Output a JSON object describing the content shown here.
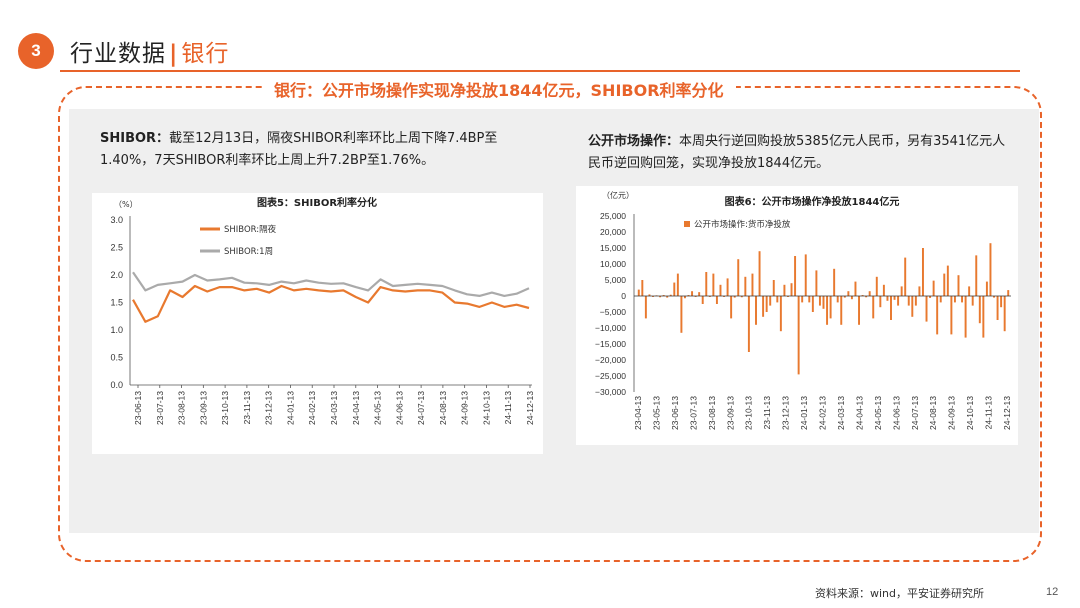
{
  "header": {
    "section_number": "3",
    "section_title": "行业数据",
    "separator": "|",
    "section_subtitle": "银行"
  },
  "headline": "银行：公开市场操作实现净投放1844亿元，SHIBOR利率分化",
  "left_text": {
    "bold": "SHIBOR：",
    "body": "截至12月13日，隔夜SHIBOR利率环比上周下降7.4BP至1.40%，7天SHIBOR利率环比上周上升7.2BP至1.76%。"
  },
  "right_text": {
    "bold": "公开市场操作：",
    "body": "本周央行逆回购投放5385亿元人民币，另有3541亿元人民币逆回购回笼，实现净投放1844亿元。"
  },
  "footer": {
    "source": "资料来源：wind，平安证券研究所",
    "page": "12"
  },
  "colors": {
    "accent": "#e8632a",
    "series_orange": "#e8792f",
    "series_gray": "#aaaaaa"
  },
  "chart_data": [
    {
      "type": "line",
      "title": "图表5：SHIBOR利率分化",
      "ylabel": "（%）",
      "ylim": [
        0,
        3
      ],
      "y_ticks": [
        "0.0",
        "0.5",
        "1.0",
        "1.5",
        "2.0",
        "2.5",
        "3.0"
      ],
      "x_tick_labels": [
        "23-06-13",
        "23-07-13",
        "23-08-13",
        "23-09-13",
        "23-10-13",
        "23-11-13",
        "23-12-13",
        "24-01-13",
        "24-02-13",
        "24-03-13",
        "24-04-13",
        "24-05-13",
        "24-06-13",
        "24-07-13",
        "24-08-13",
        "24-09-13",
        "24-10-13",
        "24-11-13",
        "24-12-13"
      ],
      "legend_placement": "top-left",
      "series": [
        {
          "name": "SHIBOR:隔夜",
          "color": "#e8792f",
          "values": [
            1.55,
            1.15,
            1.25,
            1.72,
            1.6,
            1.8,
            1.7,
            1.78,
            1.78,
            1.72,
            1.75,
            1.68,
            1.8,
            1.72,
            1.75,
            1.72,
            1.7,
            1.72,
            1.6,
            1.5,
            1.78,
            1.72,
            1.7,
            1.72,
            1.72,
            1.68,
            1.5,
            1.48,
            1.42,
            1.5,
            1.42,
            1.46,
            1.4
          ]
        },
        {
          "name": "SHIBOR:1周",
          "color": "#aaaaaa",
          "values": [
            2.05,
            1.72,
            1.82,
            1.85,
            1.88,
            2.0,
            1.9,
            1.92,
            1.95,
            1.86,
            1.85,
            1.82,
            1.88,
            1.85,
            1.9,
            1.86,
            1.84,
            1.85,
            1.78,
            1.72,
            1.92,
            1.8,
            1.82,
            1.84,
            1.82,
            1.8,
            1.72,
            1.65,
            1.62,
            1.68,
            1.62,
            1.66,
            1.76
          ]
        }
      ]
    },
    {
      "type": "bar",
      "title": "图表6：公开市场操作净投放1844亿元",
      "ylabel": "（亿元）",
      "ylim": [
        -30000,
        25000
      ],
      "y_ticks": [
        "25,000",
        "20,000",
        "15,000",
        "10,000",
        "5,000",
        "0",
        "−5,000",
        "−10,000",
        "−15,000",
        "−20,000",
        "−25,000",
        "−30,000"
      ],
      "x_tick_labels": [
        "23-04-13",
        "23-05-13",
        "23-06-13",
        "23-07-13",
        "23-08-13",
        "23-09-13",
        "23-10-13",
        "23-11-13",
        "23-12-13",
        "24-01-13",
        "24-02-13",
        "24-03-13",
        "24-04-13",
        "24-05-13",
        "24-06-13",
        "24-07-13",
        "24-08-13",
        "24-09-13",
        "24-10-13",
        "24-11-13",
        "24-12-13"
      ],
      "legend_placement": "top-left",
      "series": [
        {
          "name": "公开市场操作:货币净投放",
          "color": "#e8792f",
          "values": [
            2000,
            5000,
            -7000,
            500,
            -300,
            200,
            -400,
            300,
            -500,
            400,
            4200,
            7000,
            -11500,
            -700,
            300,
            1500,
            -300,
            1200,
            -2500,
            7500,
            -300,
            7000,
            -2500,
            3500,
            -300,
            5500,
            -7000,
            -500,
            11500,
            -400,
            6000,
            -17500,
            7000,
            -9000,
            14000,
            -6500,
            -5000,
            -3000,
            5000,
            -2000,
            -11000,
            3500,
            -300,
            4000,
            12500,
            -24500,
            -2000,
            13000,
            -2000,
            -5000,
            8000,
            -3000,
            -4000,
            -9000,
            -7000,
            8500,
            -2000,
            -9000,
            -500,
            1500,
            -1000,
            4500,
            -9000,
            300,
            -400,
            1500,
            -7000,
            6000,
            -3500,
            3500,
            -1500,
            -7500,
            -1200,
            -3000,
            3000,
            12000,
            -3000,
            -6500,
            -3000,
            3000,
            15000,
            -8000,
            -600,
            4800,
            -12000,
            -2000,
            7000,
            9500,
            -12000,
            -2000,
            6500,
            -2000,
            -13000,
            3000,
            -3000,
            12700,
            -8500,
            -13000,
            4500,
            16500,
            -500,
            -7500,
            -3500,
            -11000,
            1844
          ]
        }
      ]
    }
  ]
}
